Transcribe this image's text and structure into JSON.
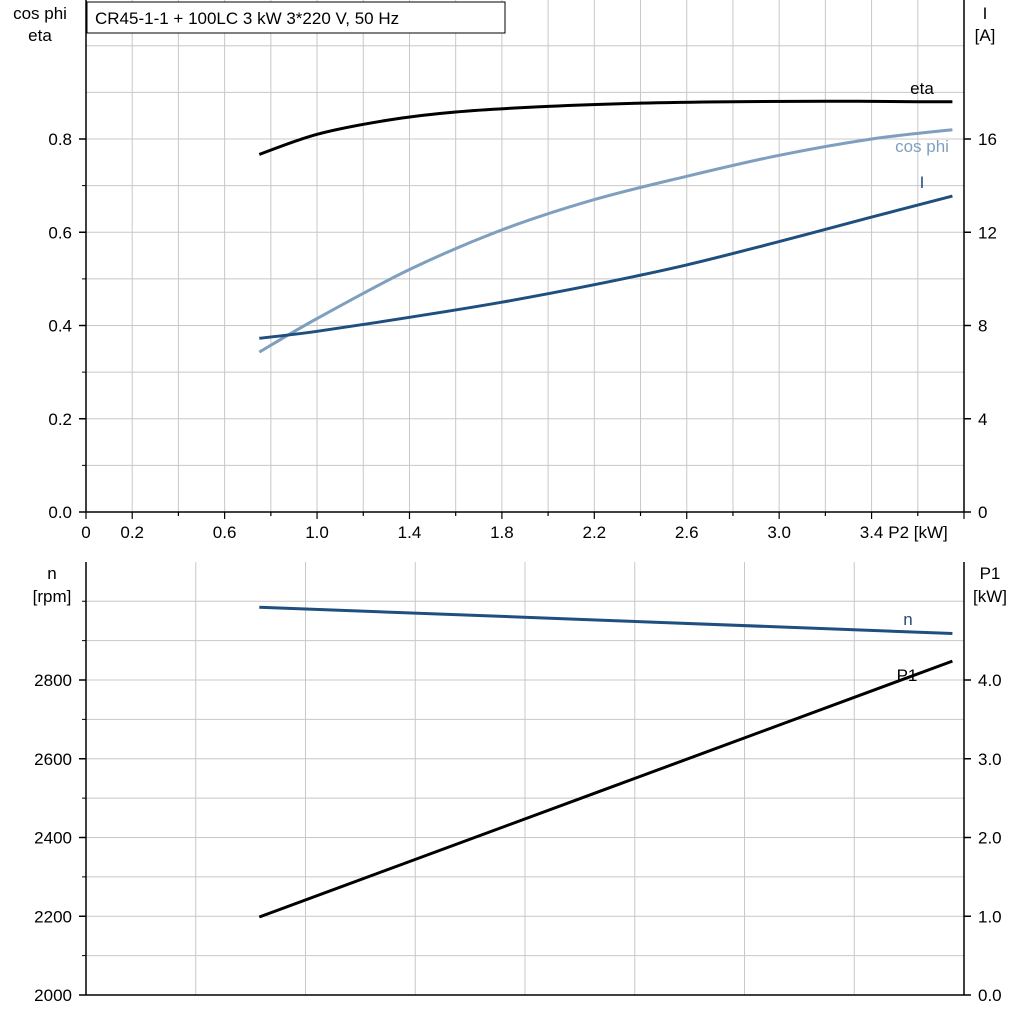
{
  "colors": {
    "grid": "#c8c8c8",
    "axis": "#000000",
    "eta": "#000000",
    "cosphi": "#7f9fbf",
    "current": "#1f4f7f",
    "speed": "#1f4f7f",
    "p1": "#000000"
  },
  "chart_data": [
    {
      "type": "line",
      "title": "CR45-1-1 + 100LC   3 kW   3*220 V, 50 Hz",
      "xlabel": "P2 [kW]",
      "ylabel_left": [
        "cos phi",
        "eta"
      ],
      "ylabel_right": [
        "I",
        "[A]"
      ],
      "xlim": [
        0,
        3.8
      ],
      "ylim_left": [
        0,
        0.8
      ],
      "ylim_right": [
        0,
        20
      ],
      "x_ticks": [
        "0",
        "0.2",
        "0.6",
        "1.0",
        "1.4",
        "1.8",
        "2.2",
        "2.6",
        "3.0",
        "3.4"
      ],
      "x_tick_values": [
        0,
        0.2,
        0.6,
        1.0,
        1.4,
        1.8,
        2.2,
        2.6,
        3.0,
        3.4
      ],
      "y_ticks_left": [
        "0.0",
        "0.2",
        "0.4",
        "0.6",
        "0.8"
      ],
      "y_tick_values_left": [
        0,
        0.2,
        0.4,
        0.6,
        0.8
      ],
      "y_ticks_right": [
        "0",
        "4",
        "8",
        "12",
        "16"
      ],
      "y_tick_values_right": [
        0,
        4,
        8,
        12,
        16
      ],
      "grid": true,
      "series": [
        {
          "name": "eta",
          "axis": "left",
          "x": [
            0.75,
            1.0,
            1.3,
            1.6,
            2.0,
            2.4,
            2.8,
            3.2,
            3.6,
            3.75
          ],
          "y": [
            0.767,
            0.81,
            0.84,
            0.858,
            0.87,
            0.877,
            0.88,
            0.881,
            0.88,
            0.88
          ]
        },
        {
          "name": "cos phi",
          "axis": "left",
          "x": [
            0.75,
            1.0,
            1.4,
            1.8,
            2.2,
            2.6,
            3.0,
            3.4,
            3.75
          ],
          "y": [
            0.343,
            0.415,
            0.52,
            0.605,
            0.67,
            0.72,
            0.765,
            0.8,
            0.82
          ]
        },
        {
          "name": "I",
          "axis": "right",
          "x": [
            0.75,
            1.0,
            1.4,
            1.8,
            2.2,
            2.6,
            3.0,
            3.4,
            3.75
          ],
          "y": [
            7.45,
            7.75,
            8.35,
            9.0,
            9.75,
            10.6,
            11.6,
            12.65,
            13.55
          ]
        }
      ]
    },
    {
      "type": "line",
      "xlabel": "",
      "ylabel_left": [
        "n",
        "[rpm]"
      ],
      "ylabel_right": [
        "P1",
        "[kW]"
      ],
      "xlim": [
        0,
        3.8
      ],
      "ylim_left": [
        2000,
        3100
      ],
      "ylim_right": [
        0,
        5.5
      ],
      "y_ticks_left": [
        "2000",
        "2200",
        "2400",
        "2600",
        "2800"
      ],
      "y_tick_values_left": [
        2000,
        2200,
        2400,
        2600,
        2800
      ],
      "y_ticks_right": [
        "0.0",
        "1.0",
        "2.0",
        "3.0",
        "4.0"
      ],
      "y_tick_values_right": [
        0,
        1,
        2,
        3,
        4
      ],
      "grid": true,
      "series": [
        {
          "name": "n",
          "axis": "left",
          "x": [
            0.75,
            3.75
          ],
          "y": [
            2985,
            2918
          ]
        },
        {
          "name": "P1",
          "axis": "right",
          "x": [
            0.75,
            3.75
          ],
          "y": [
            0.99,
            4.24
          ]
        }
      ]
    }
  ]
}
